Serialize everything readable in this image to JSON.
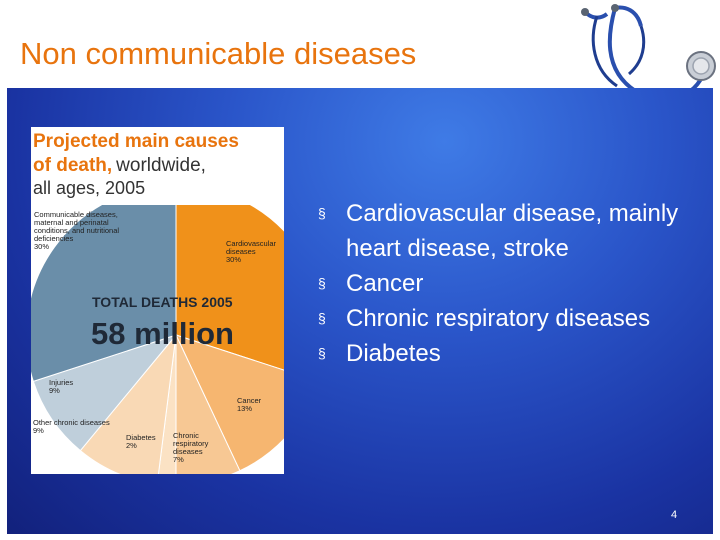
{
  "slide": {
    "title": "Non communicable diseases",
    "page_number": "4",
    "bullets": [
      "Cardiovascular disease, mainly heart disease, stroke",
      "Cancer",
      "Chronic respiratory diseases",
      "Diabetes"
    ],
    "bullet_marker": "§"
  },
  "figure": {
    "heading_line1": "Projected main causes",
    "heading_line2_bold": "of death,",
    "heading_line2_light": "worldwide,",
    "heading_line3": "all ages, 2005",
    "total_label": "TOTAL DEATHS 2005",
    "total_value": "58 million",
    "chart_data": {
      "type": "pie",
      "title": "Projected main causes of death, worldwide, all ages, 2005",
      "total": "58 million",
      "categories": [
        "Cardiovascular diseases",
        "Cancer",
        "Chronic respiratory diseases",
        "Diabetes",
        "Other chronic diseases",
        "Injuries",
        "Communicable diseases, maternal and perinatal conditions, and nutritional deficiencies"
      ],
      "values": [
        30,
        13,
        7,
        2,
        9,
        9,
        30
      ],
      "unit": "%",
      "colors": [
        "#f0911a",
        "#f6b670",
        "#f7c894",
        "#fbe2c4",
        "#f9d9b5",
        "#bfcfdb",
        "#6a8ea9"
      ]
    },
    "labels": {
      "cardio": [
        "Cardiovascular",
        "diseases",
        "30%"
      ],
      "cancer": [
        "Cancer",
        "13%"
      ],
      "respiratory": [
        "Chronic",
        "respiratory",
        "diseases",
        "7%"
      ],
      "diabetes": [
        "Diabetes",
        "2%"
      ],
      "other": [
        "Other chronic diseases",
        "9%"
      ],
      "injuries": [
        "Injuries",
        "9%"
      ],
      "communicable": [
        "Communicable diseases,",
        "maternal and perinatal",
        "conditions, and nutritional",
        "deficiencies",
        "30%"
      ]
    }
  },
  "colors": {
    "title": "#e8740e",
    "heading_orange": "#e8740e",
    "panel_blue": "#2a55c9"
  },
  "icons": {
    "decoration": "stethoscope-icon"
  }
}
